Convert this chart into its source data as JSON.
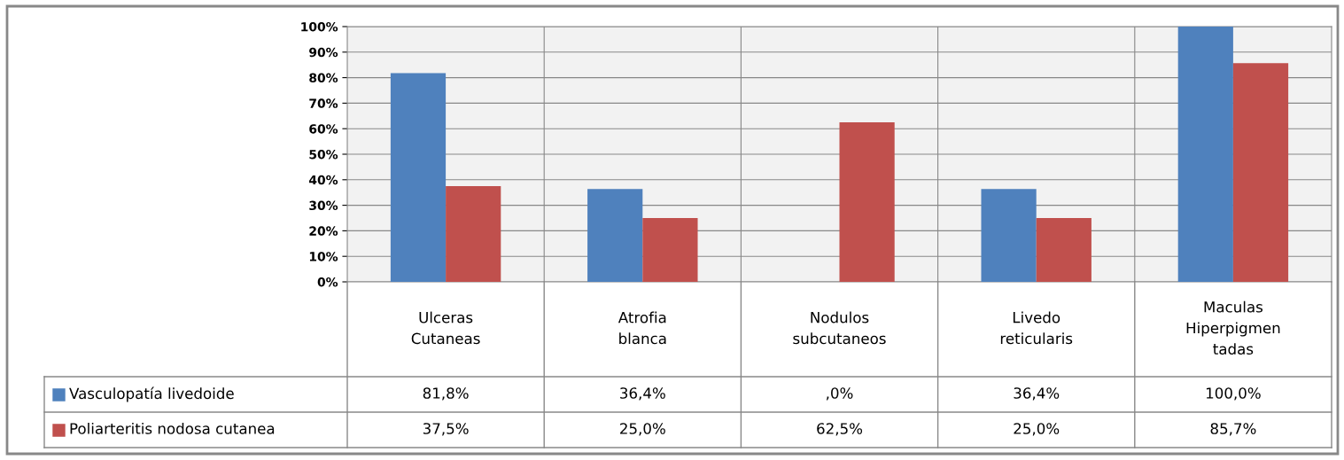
{
  "chart_data": {
    "type": "bar",
    "categories": [
      "Ulceras\nCutaneas",
      "Atrofia\nblanca",
      "Nodulos\nsubcutaneos",
      "Livedo\nreticularis",
      "Maculas\nHiperpigmen\ntadas"
    ],
    "series": [
      {
        "name": "Vasculopatía livedoide",
        "color": "#4f81bd",
        "values": [
          81.8,
          36.4,
          0,
          36.4,
          100.0
        ],
        "value_labels": [
          "81,8%",
          "36,4%",
          ",0%",
          "36,4%",
          "100,0%"
        ]
      },
      {
        "name": "Poliarteritis nodosa cutanea",
        "color": "#c0504d",
        "values": [
          37.5,
          25.0,
          62.5,
          25.0,
          85.7
        ],
        "value_labels": [
          "37,5%",
          "25,0%",
          "62,5%",
          "25,0%",
          "85,7%"
        ]
      }
    ],
    "ylim": [
      0,
      100
    ],
    "yticks": [
      {
        "value": 0,
        "label": "0%"
      },
      {
        "value": 10,
        "label": "10%"
      },
      {
        "value": 20,
        "label": "20%"
      },
      {
        "value": 30,
        "label": "30%"
      },
      {
        "value": 40,
        "label": "40%"
      },
      {
        "value": 50,
        "label": "50%"
      },
      {
        "value": 60,
        "label": "60%"
      },
      {
        "value": 70,
        "label": "70%"
      },
      {
        "value": 80,
        "label": "80%"
      },
      {
        "value": 90,
        "label": "90%"
      },
      {
        "value": 100,
        "label": "100%"
      }
    ],
    "grid": true,
    "legend": "bottom"
  }
}
